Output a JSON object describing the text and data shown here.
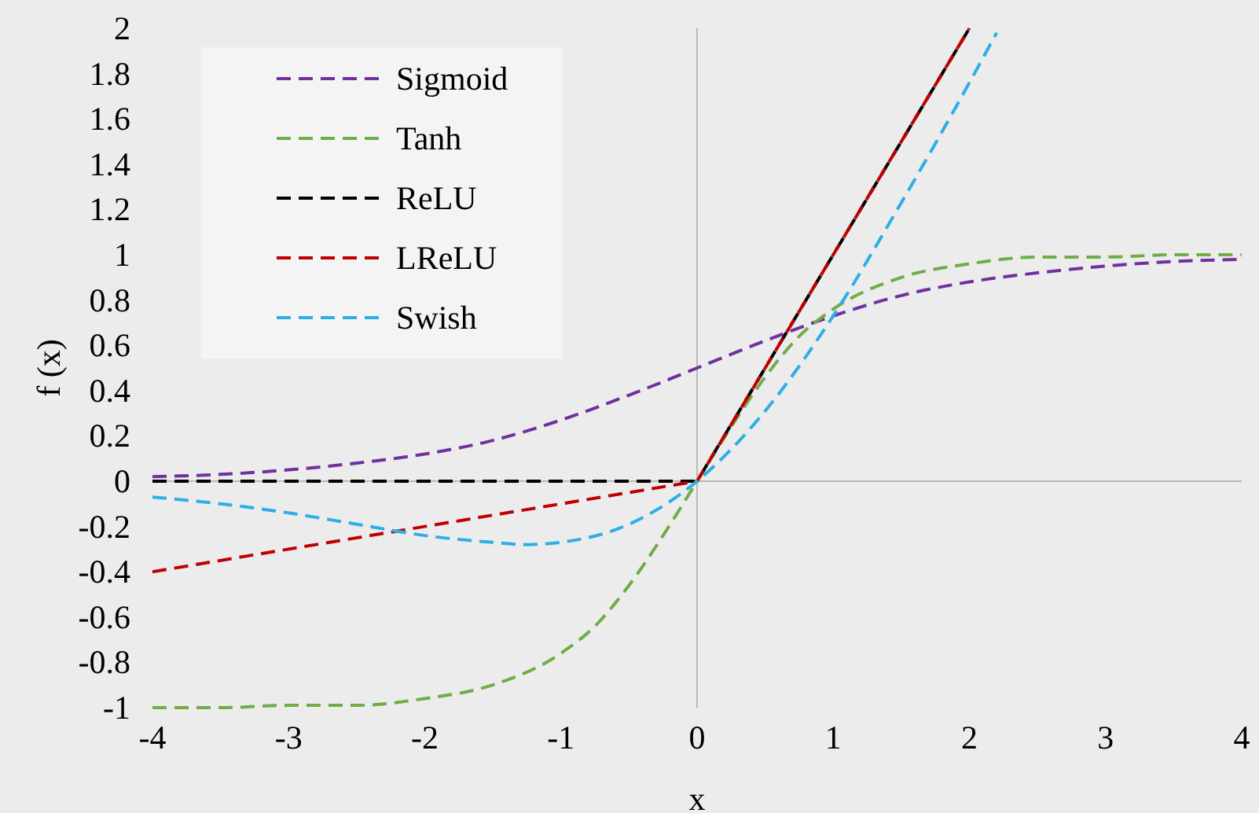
{
  "chart_data": {
    "type": "line",
    "xlabel": "x",
    "ylabel": "f (x)",
    "xlim": [
      -4,
      4
    ],
    "xticks": [
      -4,
      -3,
      -2,
      -1,
      0,
      1,
      2,
      3,
      4
    ],
    "ylim": [
      -1,
      2
    ],
    "yticks": [
      -1,
      -0.8,
      -0.6,
      -0.4,
      -0.2,
      0,
      0.2,
      0.4,
      0.6,
      0.8,
      1,
      1.2,
      1.4,
      1.6,
      1.8,
      2
    ],
    "legend": "top left",
    "line_style": "dashed",
    "marker": "none",
    "series": [
      {
        "name": "Sigmoid",
        "color": "#7030a0",
        "x": [
          -4,
          -3.5,
          -3,
          -2.5,
          -2,
          -1.5,
          -1,
          -0.5,
          0,
          0.5,
          1,
          1.5,
          2,
          2.5,
          3,
          3.5,
          4
        ],
        "values": [
          0.02,
          0.03,
          0.05,
          0.08,
          0.12,
          0.18,
          0.27,
          0.38,
          0.5,
          0.62,
          0.73,
          0.82,
          0.88,
          0.92,
          0.95,
          0.97,
          0.98
        ]
      },
      {
        "name": "Tanh",
        "color": "#70ad47",
        "x": [
          -4,
          -3.5,
          -3,
          -2.5,
          -2,
          -1.5,
          -1,
          -0.75,
          -0.5,
          -0.25,
          0,
          0.25,
          0.5,
          0.75,
          1,
          1.5,
          2,
          2.5,
          3,
          3.5,
          4
        ],
        "values": [
          -1,
          -1,
          -0.99,
          -0.99,
          -0.96,
          -0.9,
          -0.76,
          -0.64,
          -0.46,
          -0.24,
          0,
          0.24,
          0.46,
          0.64,
          0.76,
          0.9,
          0.96,
          0.99,
          0.99,
          1,
          1
        ]
      },
      {
        "name": "ReLU",
        "color": "#000000",
        "x": [
          -4,
          0,
          2
        ],
        "values": [
          0,
          0,
          2
        ]
      },
      {
        "name": "LReLU",
        "color": "#c00000",
        "x": [
          -4,
          0,
          2
        ],
        "values": [
          -0.4,
          0,
          2
        ]
      },
      {
        "name": "Swish",
        "color": "#2eaee6",
        "x": [
          -4,
          -3.5,
          -3,
          -2.5,
          -2,
          -1.5,
          -1.25,
          -1,
          -0.5,
          0,
          0.5,
          1,
          1.5,
          2,
          2.2
        ],
        "values": [
          -0.07,
          -0.1,
          -0.14,
          -0.19,
          -0.24,
          -0.27,
          -0.28,
          -0.27,
          -0.19,
          0,
          0.31,
          0.73,
          1.23,
          1.76,
          1.98
        ]
      }
    ]
  }
}
